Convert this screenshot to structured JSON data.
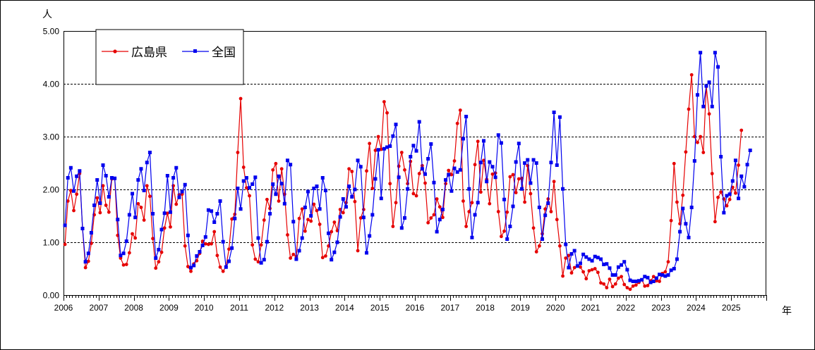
{
  "chart_data": {
    "type": "line",
    "title": "",
    "yunit": "人",
    "xunit": "年",
    "ylim": [
      0,
      5
    ],
    "yticks": [
      "0.00",
      "1.00",
      "2.00",
      "3.00",
      "4.00",
      "5.00"
    ],
    "xticks": [
      "2006",
      "2007",
      "2008",
      "2009",
      "2010",
      "2011",
      "2012",
      "2013",
      "2014",
      "2015",
      "2016",
      "2017",
      "2018",
      "2019",
      "2020",
      "2021",
      "2022",
      "2023",
      "2024",
      "2025"
    ],
    "x_start_year": 2006,
    "grid": "horizontal dashed",
    "legend_position": "top-left",
    "series": [
      {
        "name": "広島県",
        "color": "#e60000",
        "marker": "circle",
        "values": [
          0.96,
          1.78,
          1.98,
          1.6,
          1.91,
          2.3,
          1.26,
          0.52,
          0.64,
          0.98,
          1.52,
          1.84,
          1.56,
          2.07,
          1.7,
          1.57,
          2.2,
          2.21,
          1.13,
          0.7,
          0.57,
          0.58,
          0.8,
          1.16,
          1.08,
          1.73,
          1.66,
          1.42,
          2.07,
          1.87,
          1.07,
          0.51,
          0.63,
          0.81,
          1.27,
          1.55,
          1.29,
          2.07,
          1.72,
          1.9,
          1.91,
          0.93,
          0.54,
          0.45,
          0.59,
          0.65,
          0.79,
          1.02,
          0.97,
          0.96,
          0.97,
          1.2,
          0.75,
          0.53,
          0.45,
          0.54,
          0.87,
          1.44,
          1.53,
          2.7,
          3.72,
          2.42,
          2.03,
          1.88,
          0.95,
          0.68,
          0.63,
          0.95,
          1.42,
          1.81,
          1.64,
          2.37,
          2.49,
          1.78,
          2.39,
          1.91,
          1.14,
          0.7,
          0.77,
          0.73,
          1.45,
          1.63,
          1.21,
          1.43,
          1.4,
          1.72,
          1.6,
          1.34,
          0.71,
          0.74,
          0.93,
          1.2,
          1.38,
          1.22,
          1.62,
          1.56,
          1.75,
          2.39,
          2.34,
          1.77,
          0.84,
          1.46,
          1.62,
          2.35,
          2.87,
          2.02,
          2.74,
          3.0,
          2.76,
          3.66,
          3.45,
          2.11,
          1.3,
          1.75,
          2.44,
          2.7,
          2.37,
          2.11,
          2.53,
          1.92,
          1.88,
          2.3,
          2.45,
          2.12,
          1.37,
          1.46,
          1.52,
          1.82,
          1.67,
          1.47,
          2.11,
          2.36,
          2.28,
          2.54,
          3.25,
          3.5,
          1.78,
          1.3,
          1.58,
          1.75,
          2.47,
          2.91,
          1.95,
          2.55,
          2.19,
          1.73,
          2.29,
          2.31,
          1.58,
          1.11,
          1.21,
          1.57,
          2.24,
          2.28,
          1.94,
          2.2,
          2.21,
          1.76,
          2.45,
          1.92,
          1.27,
          0.82,
          0.93,
          1.16,
          1.63,
          1.82,
          1.58,
          2.15,
          1.43,
          0.93,
          0.36,
          0.7,
          0.75,
          0.42,
          0.52,
          0.55,
          0.53,
          0.44,
          0.31,
          0.46,
          0.48,
          0.5,
          0.43,
          0.23,
          0.21,
          0.14,
          0.3,
          0.16,
          0.21,
          0.32,
          0.35,
          0.2,
          0.14,
          0.11,
          0.17,
          0.19,
          0.24,
          0.29,
          0.17,
          0.18,
          0.27,
          0.35,
          0.27,
          0.26,
          0.41,
          0.44,
          0.63,
          1.41,
          2.49,
          1.76,
          1.35,
          1.89,
          2.71,
          3.52,
          4.17,
          3.0,
          2.89,
          3.0,
          2.7,
          3.95,
          3.43,
          2.3,
          1.39,
          1.85,
          1.95,
          1.82,
          1.69,
          1.81,
          2.04,
          1.93,
          2.46,
          3.12
        ]
      },
      {
        "name": "全国",
        "color": "#0000ee",
        "marker": "square",
        "values": [
          1.32,
          2.22,
          2.41,
          1.97,
          2.25,
          2.35,
          1.26,
          0.63,
          0.79,
          1.18,
          1.7,
          2.18,
          1.74,
          2.46,
          2.26,
          1.86,
          2.22,
          2.21,
          1.43,
          0.75,
          0.79,
          1.02,
          1.52,
          1.92,
          1.47,
          2.18,
          2.39,
          1.98,
          2.51,
          2.7,
          1.54,
          0.7,
          0.86,
          1.24,
          1.55,
          2.26,
          1.57,
          2.22,
          2.41,
          1.85,
          1.96,
          2.09,
          1.13,
          0.52,
          0.56,
          0.74,
          0.82,
          0.94,
          1.1,
          1.61,
          1.59,
          1.38,
          1.54,
          1.78,
          1.01,
          0.53,
          0.64,
          0.89,
          1.45,
          2.02,
          1.63,
          2.16,
          2.22,
          2.03,
          2.1,
          2.23,
          1.08,
          0.61,
          0.67,
          1.01,
          1.54,
          2.1,
          1.91,
          2.25,
          2.11,
          1.73,
          2.55,
          2.47,
          1.39,
          0.68,
          0.84,
          1.08,
          1.66,
          1.96,
          1.5,
          2.02,
          2.06,
          1.63,
          2.22,
          1.98,
          1.17,
          0.67,
          0.81,
          1.0,
          1.48,
          1.82,
          1.67,
          2.06,
          1.86,
          2.0,
          2.55,
          2.43,
          1.47,
          0.8,
          1.12,
          1.52,
          2.2,
          2.75,
          1.83,
          2.77,
          2.8,
          2.82,
          3.01,
          3.23,
          2.23,
          1.27,
          1.46,
          2.01,
          2.62,
          2.83,
          2.73,
          3.28,
          2.39,
          2.29,
          2.58,
          2.86,
          2.13,
          1.2,
          1.43,
          1.62,
          2.18,
          2.28,
          1.97,
          2.4,
          2.33,
          2.37,
          2.96,
          3.38,
          2.01,
          1.09,
          1.52,
          1.75,
          2.51,
          2.92,
          2.15,
          2.52,
          2.43,
          2.23,
          3.03,
          2.88,
          1.81,
          1.06,
          1.3,
          1.68,
          2.52,
          2.87,
          2.01,
          2.5,
          2.56,
          2.12,
          2.56,
          2.5,
          1.66,
          1.06,
          1.51,
          1.74,
          2.51,
          3.46,
          2.46,
          3.37,
          2.01,
          0.96,
          0.52,
          0.78,
          0.84,
          0.55,
          0.6,
          0.77,
          0.72,
          0.68,
          0.65,
          0.73,
          0.71,
          0.68,
          0.58,
          0.59,
          0.51,
          0.38,
          0.38,
          0.53,
          0.57,
          0.63,
          0.48,
          0.28,
          0.26,
          0.26,
          0.27,
          0.29,
          0.35,
          0.33,
          0.24,
          0.26,
          0.32,
          0.39,
          0.38,
          0.36,
          0.38,
          0.47,
          0.5,
          0.68,
          1.2,
          1.64,
          1.35,
          1.09,
          1.66,
          2.54,
          3.79,
          4.59,
          3.57,
          3.96,
          4.03,
          3.57,
          4.59,
          4.32,
          2.62,
          1.56,
          1.88,
          1.91,
          2.16,
          2.55,
          1.83,
          2.25,
          2.05,
          2.47,
          2.74
        ]
      }
    ]
  }
}
